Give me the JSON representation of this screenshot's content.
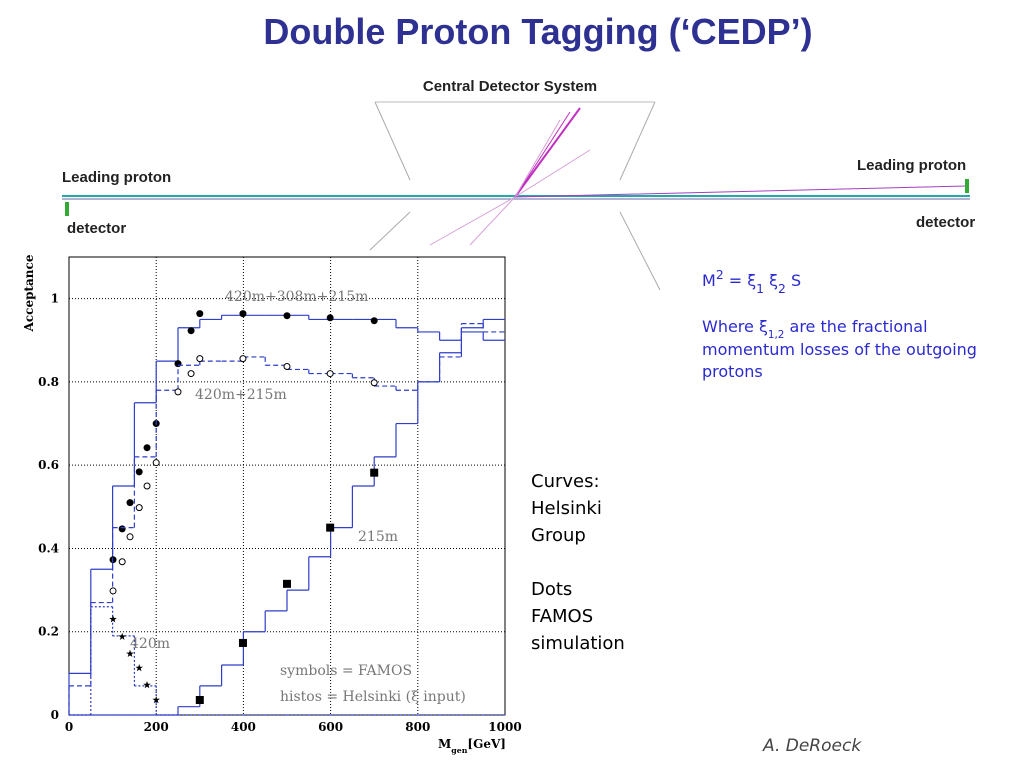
{
  "slide": {
    "title": "Double Proton Tagging (‘CEDP’)",
    "diagram": {
      "center_label": "Central Detector System",
      "left_label": "Leading proton",
      "left_detector": "detector",
      "right_label": "Leading proton",
      "right_detector": "detector"
    },
    "formula": [
      "M",
      "2",
      " = ξ",
      "1",
      " ξ",
      "2",
      " S"
    ],
    "where_line": [
      "Where ξ",
      "1,2",
      " are the fractional"
    ],
    "where_rest": [
      "momentum losses of the outgoing",
      "protons"
    ],
    "curves_note": [
      "Curves:",
      "Helsinki",
      "Group"
    ],
    "dots_note": [
      "Dots",
      "FAMOS",
      "simulation"
    ],
    "author": "A. DeRoeck"
  },
  "chart_data": {
    "type": "scatter",
    "ylabel": "Acceptance",
    "xlabel": [
      "M",
      "gen",
      "[GeV]"
    ],
    "xlim": [
      0,
      1000
    ],
    "ylim": [
      0,
      1.1
    ],
    "xticks": [
      0,
      200,
      400,
      600,
      800,
      1000
    ],
    "yticks": [
      0,
      0.2,
      0.4,
      0.6,
      0.8,
      1
    ],
    "grid": true,
    "color": "#2f3fc8",
    "bins": [
      0,
      50,
      100,
      150,
      200,
      250,
      300,
      350,
      400,
      450,
      500,
      550,
      600,
      650,
      700,
      750,
      800,
      850,
      900,
      950,
      1000
    ],
    "annotations": [
      "symbols = FAMOS",
      "histos = Helsinki (ξ input)"
    ],
    "series": [
      {
        "name": "420m+308m+215m",
        "marker": "filled-circle",
        "hist_style": "solid",
        "x": [
          101,
          122,
          140,
          161,
          179,
          200,
          250,
          280,
          300,
          399,
          500,
          599,
          700
        ],
        "values": [
          0.373,
          0.447,
          0.51,
          0.584,
          0.642,
          0.7,
          0.844,
          0.923,
          0.964,
          0.964,
          0.959,
          0.954,
          0.947
        ],
        "hist": [
          0.1,
          0.35,
          0.55,
          0.75,
          0.85,
          0.93,
          0.95,
          0.96,
          0.96,
          0.96,
          0.96,
          0.95,
          0.95,
          0.95,
          0.95,
          0.93,
          0.92,
          0.9,
          0.93,
          0.95
        ]
      },
      {
        "name": "420m+215m",
        "marker": "open-circle",
        "hist_style": "dashed",
        "x": [
          101,
          122,
          140,
          161,
          179,
          200,
          250,
          280,
          300,
          399,
          500,
          599,
          700
        ],
        "values": [
          0.298,
          0.368,
          0.428,
          0.498,
          0.55,
          0.606,
          0.776,
          0.82,
          0.856,
          0.856,
          0.837,
          0.82,
          0.798
        ],
        "hist": [
          0.07,
          0.27,
          0.45,
          0.62,
          0.78,
          0.84,
          0.85,
          0.85,
          0.86,
          0.84,
          0.83,
          0.82,
          0.82,
          0.81,
          0.79,
          0.78,
          0.8,
          0.86,
          0.94,
          0.92
        ]
      },
      {
        "name": "420m",
        "marker": "star",
        "hist_style": "dotted",
        "x": [
          101,
          122,
          140,
          161,
          179,
          200
        ],
        "values": [
          0.23,
          0.188,
          0.147,
          0.113,
          0.072,
          0.036
        ],
        "hist": [
          0,
          0.26,
          0.19,
          0.07,
          0,
          0,
          0,
          0,
          0,
          0,
          0,
          0,
          0,
          0,
          0,
          0,
          0,
          0,
          0,
          0
        ]
      },
      {
        "name": "215m",
        "marker": "square",
        "hist_style": "solid",
        "x": [
          300,
          399,
          500,
          599,
          700
        ],
        "values": [
          0.036,
          0.173,
          0.315,
          0.45,
          0.582
        ],
        "hist": [
          0,
          0,
          0,
          0,
          0,
          0.02,
          0.07,
          0.12,
          0.2,
          0.25,
          0.3,
          0.38,
          0.45,
          0.55,
          0.62,
          0.7,
          0.8,
          0.87,
          0.92,
          0.9
        ]
      }
    ]
  }
}
